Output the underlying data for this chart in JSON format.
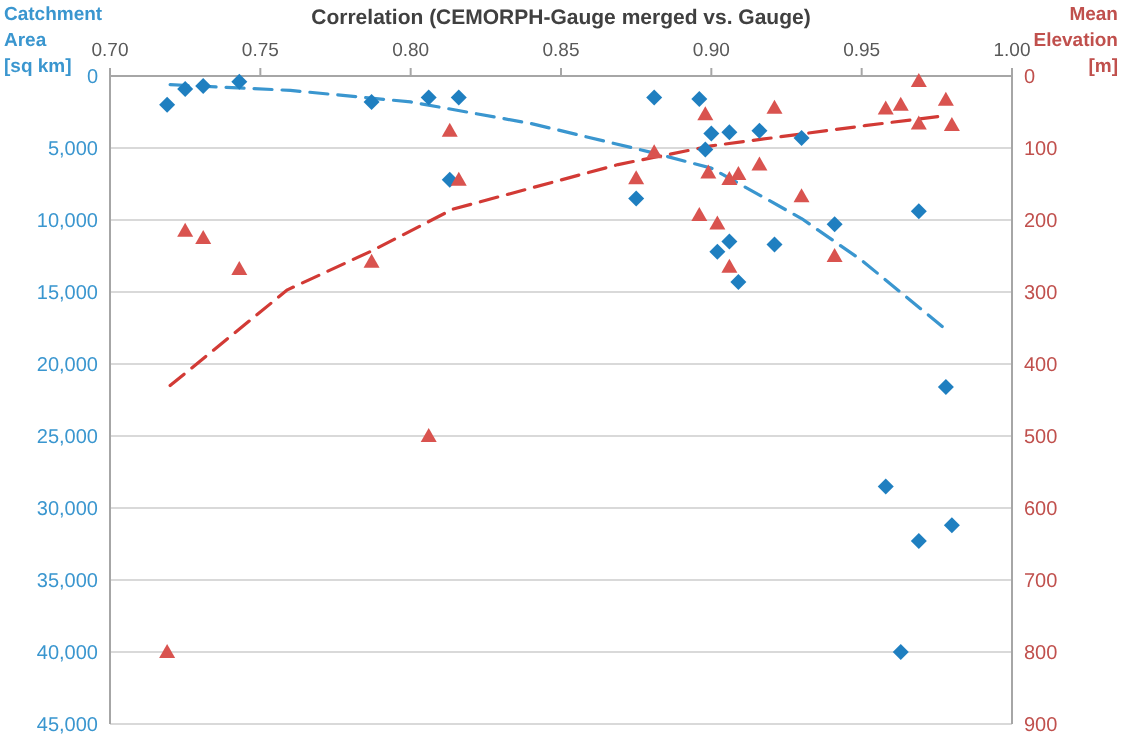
{
  "chart_data": {
    "type": "scatter",
    "xlabel": "Correlation (CEMORPH-Gauge merged vs. Gauge)",
    "ylabel": "Catchment Area [sq km]",
    "y2label": "Mean Elevation [m]",
    "xlim": [
      0.7,
      1.0
    ],
    "xticks": [
      {
        "value": 0.7,
        "label": "0.70"
      },
      {
        "value": 0.75,
        "label": "0.75"
      },
      {
        "value": 0.8,
        "label": "0.80"
      },
      {
        "value": 0.85,
        "label": "0.85"
      },
      {
        "value": 0.9,
        "label": "0.90"
      },
      {
        "value": 0.95,
        "label": "0.95"
      },
      {
        "value": 1.0,
        "label": "1.00"
      }
    ],
    "ylim": [
      45000,
      0
    ],
    "yticks": [
      {
        "value": 0,
        "label": "0"
      },
      {
        "value": 5000,
        "label": "5,000"
      },
      {
        "value": 10000,
        "label": "10,000"
      },
      {
        "value": 15000,
        "label": "15,000"
      },
      {
        "value": 20000,
        "label": "20,000"
      },
      {
        "value": 25000,
        "label": "25,000"
      },
      {
        "value": 30000,
        "label": "30,000"
      },
      {
        "value": 35000,
        "label": "35,000"
      },
      {
        "value": 40000,
        "label": "40,000"
      },
      {
        "value": 45000,
        "label": "45,000"
      }
    ],
    "y2lim": [
      900,
      0
    ],
    "y2ticks": [
      0,
      100,
      200,
      300,
      400,
      500,
      600,
      700,
      800,
      900
    ],
    "grid": "y",
    "series": [
      {
        "marker": "diamond",
        "color": "#1f7fc0",
        "x": [
          0.719,
          0.725,
          0.731,
          0.743,
          0.787,
          0.806,
          0.816,
          0.813,
          0.881,
          0.896,
          0.9,
          0.906,
          0.898,
          0.916,
          0.93,
          0.875,
          0.941,
          0.969,
          0.906,
          0.902,
          0.921,
          0.909,
          0.978,
          0.958,
          0.969,
          0.98,
          0.963
        ],
        "values": [
          2000,
          900,
          700,
          400,
          1800,
          1500,
          1500,
          7200,
          1500,
          1600,
          4000,
          3900,
          5100,
          3800,
          4300,
          8500,
          10300,
          9400,
          11500,
          12200,
          11700,
          14300,
          21600,
          28500,
          32300,
          31200,
          40000
        ]
      },
      {
        "marker": "triangle",
        "color": "#d9534f",
        "axis": "y2",
        "x": [
          0.725,
          0.731,
          0.743,
          0.787,
          0.813,
          0.816,
          0.806,
          0.719,
          0.875,
          0.881,
          0.898,
          0.899,
          0.896,
          0.902,
          0.906,
          0.909,
          0.906,
          0.916,
          0.921,
          0.93,
          0.941,
          0.958,
          0.963,
          0.969,
          0.969,
          0.978,
          0.98
        ],
        "values": [
          215,
          225,
          268,
          258,
          76,
          144,
          500,
          800,
          142,
          106,
          53,
          134,
          193,
          205,
          143,
          136,
          265,
          123,
          44,
          167,
          250,
          45,
          40,
          7,
          66,
          33,
          68
        ]
      },
      {
        "type": "line",
        "marker": "none",
        "line_style": "dashed",
        "color": "#3a96cf",
        "x": [
          0.72,
          0.76,
          0.8,
          0.84,
          0.88,
          0.9,
          0.93,
          0.95,
          0.978
        ],
        "values": [
          600,
          1000,
          1800,
          3300,
          5300,
          6400,
          9900,
          12800,
          17600
        ]
      },
      {
        "type": "line",
        "marker": "none",
        "line_style": "dashed",
        "color": "#d23a35",
        "axis": "y2",
        "x": [
          0.72,
          0.759,
          0.787,
          0.814,
          0.869,
          0.9,
          0.951,
          0.978
        ],
        "values": [
          430,
          297,
          243,
          185,
          123,
          97,
          69,
          55
        ]
      }
    ]
  }
}
